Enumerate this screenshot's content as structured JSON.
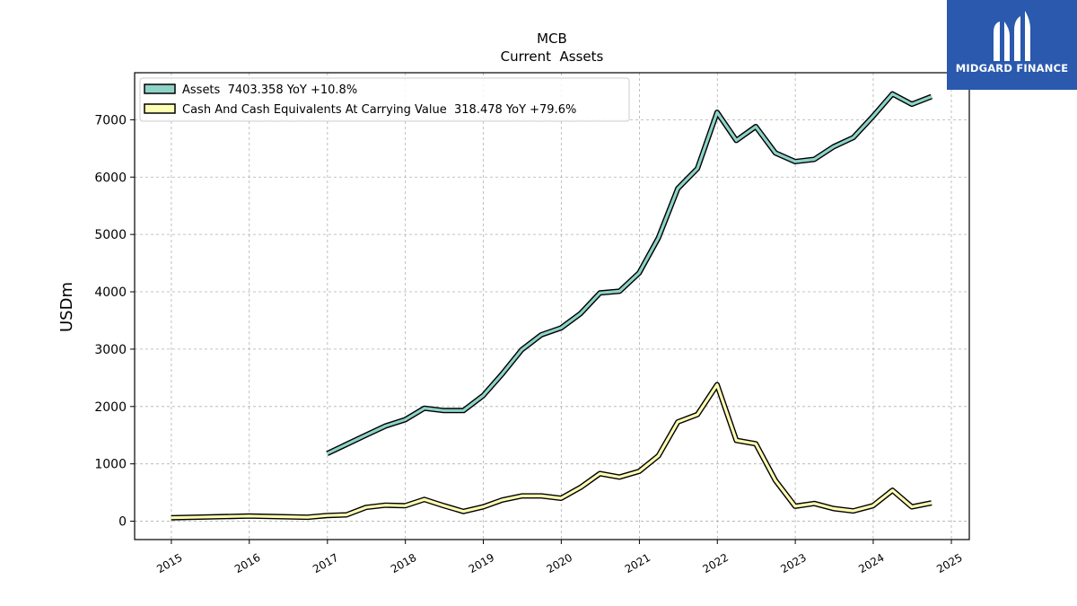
{
  "brand": {
    "name": "MIDGARD FINANCE",
    "bg_color": "#2a59ad"
  },
  "chart_data": {
    "type": "line",
    "title": "MCB",
    "subtitle": "Current  Assets",
    "ylabel": "USDm",
    "xlabel": "",
    "ylim": [
      -320,
      7820
    ],
    "xlim": [
      "2014-07-13",
      "2025-03-26"
    ],
    "yticks": [
      0,
      1000,
      2000,
      3000,
      4000,
      5000,
      6000,
      7000
    ],
    "xticks": [
      "2015",
      "2016",
      "2017",
      "2018",
      "2019",
      "2020",
      "2021",
      "2022",
      "2023",
      "2024",
      "2025"
    ],
    "grid": true,
    "legend_position": "top-left",
    "series": [
      {
        "name": "Assets",
        "legend_label": "Assets  7403.358 YoY +10.8%",
        "color": "#8dd3c7",
        "x": [
          "2016-12-31",
          "2017-03-31",
          "2017-06-30",
          "2017-09-30",
          "2017-12-31",
          "2018-03-31",
          "2018-06-30",
          "2018-09-30",
          "2018-12-31",
          "2019-03-31",
          "2019-06-30",
          "2019-09-30",
          "2019-12-31",
          "2020-03-31",
          "2020-06-30",
          "2020-09-30",
          "2020-12-31",
          "2021-03-31",
          "2021-06-30",
          "2021-09-30",
          "2021-12-31",
          "2022-03-31",
          "2022-06-30",
          "2022-09-30",
          "2022-12-31",
          "2023-03-31",
          "2023-06-30",
          "2023-09-30",
          "2023-12-31",
          "2024-03-31",
          "2024-06-30",
          "2024-09-30"
        ],
        "y": [
          1180,
          1340,
          1500,
          1660,
          1770,
          1970,
          1930,
          1930,
          2190,
          2570,
          2990,
          3250,
          3370,
          3620,
          3980,
          4010,
          4330,
          4940,
          5800,
          6150,
          7130,
          6640,
          6880,
          6420,
          6270,
          6310,
          6530,
          6690,
          7060,
          7450,
          7270,
          7403.358
        ]
      },
      {
        "name": "Cash And Cash Equivalents At Carrying Value",
        "legend_label": "Cash And Cash Equivalents At Carrying Value  318.478 YoY +79.6%",
        "color": "#ffffb3",
        "x": [
          "2014-12-31",
          "2015-12-31",
          "2016-09-30",
          "2016-12-31",
          "2017-03-31",
          "2017-06-30",
          "2017-09-30",
          "2017-12-31",
          "2018-03-31",
          "2018-06-30",
          "2018-09-30",
          "2018-12-31",
          "2019-03-31",
          "2019-06-30",
          "2019-09-30",
          "2019-12-31",
          "2020-03-31",
          "2020-06-30",
          "2020-09-30",
          "2020-12-31",
          "2021-03-31",
          "2021-06-30",
          "2021-09-30",
          "2021-12-31",
          "2022-03-31",
          "2022-06-30",
          "2022-09-30",
          "2022-12-31",
          "2023-03-31",
          "2023-06-30",
          "2023-09-30",
          "2023-12-31",
          "2024-03-31",
          "2024-06-30",
          "2024-09-30"
        ],
        "y": [
          60,
          90,
          70,
          100,
          110,
          240,
          280,
          270,
          380,
          270,
          170,
          250,
          370,
          440,
          440,
          400,
          590,
          830,
          770,
          870,
          1140,
          1730,
          1860,
          2380,
          1410,
          1350,
          710,
          260,
          310,
          220,
          180,
          270,
          540,
          250,
          318.478
        ]
      }
    ]
  }
}
